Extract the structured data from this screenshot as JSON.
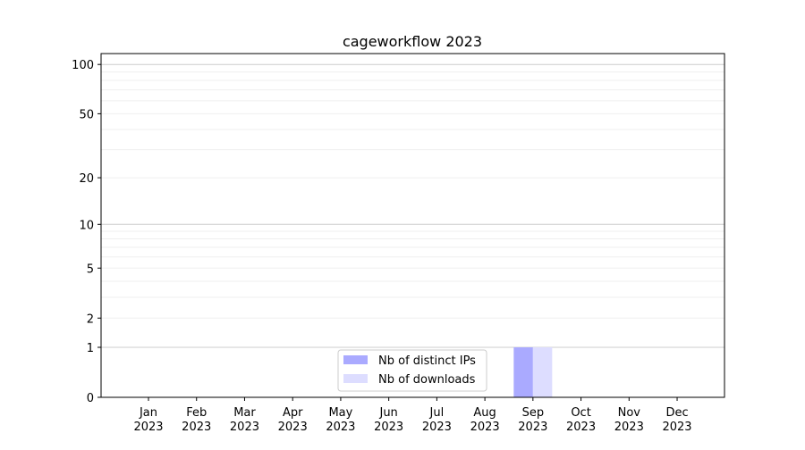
{
  "chart_data": {
    "type": "bar",
    "title": "cageworkflow 2023",
    "xlabel": "",
    "ylabel": "",
    "yscale": "log(1+y)",
    "ylim": [
      0,
      117
    ],
    "yticks": [
      0,
      1,
      2,
      5,
      10,
      20,
      50,
      100
    ],
    "grid": true,
    "categories": [
      "Jan\n2023",
      "Feb\n2023",
      "Mar\n2023",
      "Apr\n2023",
      "May\n2023",
      "Jun\n2023",
      "Jul\n2023",
      "Aug\n2023",
      "Sep\n2023",
      "Oct\n2023",
      "Nov\n2023",
      "Dec\n2023"
    ],
    "series": [
      {
        "name": "Nb of distinct IPs",
        "color": "#aaaaff",
        "values": [
          0,
          0,
          0,
          0,
          0,
          0,
          0,
          0,
          1,
          0,
          0,
          0
        ]
      },
      {
        "name": "Nb of downloads",
        "color": "#ddddff",
        "values": [
          0,
          0,
          0,
          0,
          0,
          0,
          0,
          0,
          1,
          0,
          0,
          0
        ]
      }
    ],
    "legend_position": "lower-center"
  }
}
